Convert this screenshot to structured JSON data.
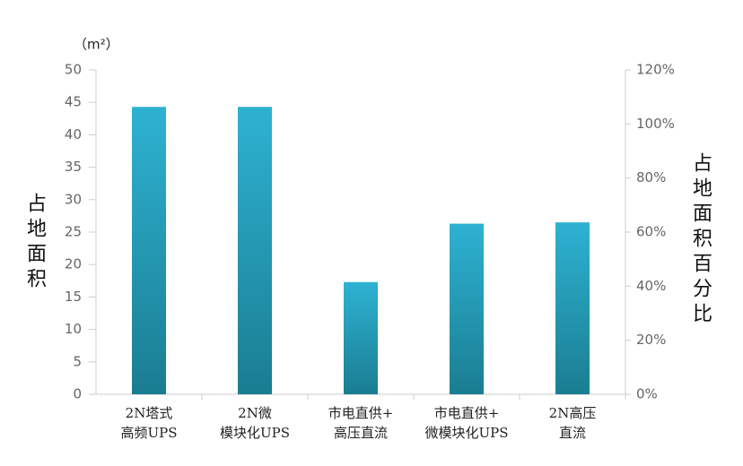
{
  "chart_data": {
    "type": "bar",
    "unit_label": "（m²）",
    "y_label": "占地面积",
    "y2_label": "占地面积百分比",
    "categories": [
      [
        "2N塔式",
        "高频UPS"
      ],
      [
        "2N微",
        "模块化UPS"
      ],
      [
        "市电直供+",
        "高压直流"
      ],
      [
        "市电直供+",
        "微模块化UPS"
      ],
      [
        "2N高压",
        "直流"
      ]
    ],
    "values": [
      44.3,
      44.3,
      17.3,
      26.3,
      26.5
    ],
    "color": "#2eb2d2",
    "ylim": [
      0,
      50
    ],
    "yticks": [
      0,
      5,
      10,
      15,
      20,
      25,
      30,
      35,
      40,
      45,
      50
    ],
    "y2lim": [
      0,
      120
    ],
    "y2ticks": [
      {
        "value": 0,
        "label": "0%"
      },
      {
        "value": 20,
        "label": "20%"
      },
      {
        "value": 40,
        "label": "40%"
      },
      {
        "value": 60,
        "label": "60%"
      },
      {
        "value": 80,
        "label": "80%"
      },
      {
        "value": 100,
        "label": "100%"
      },
      {
        "value": 120,
        "label": "120%"
      }
    ]
  }
}
